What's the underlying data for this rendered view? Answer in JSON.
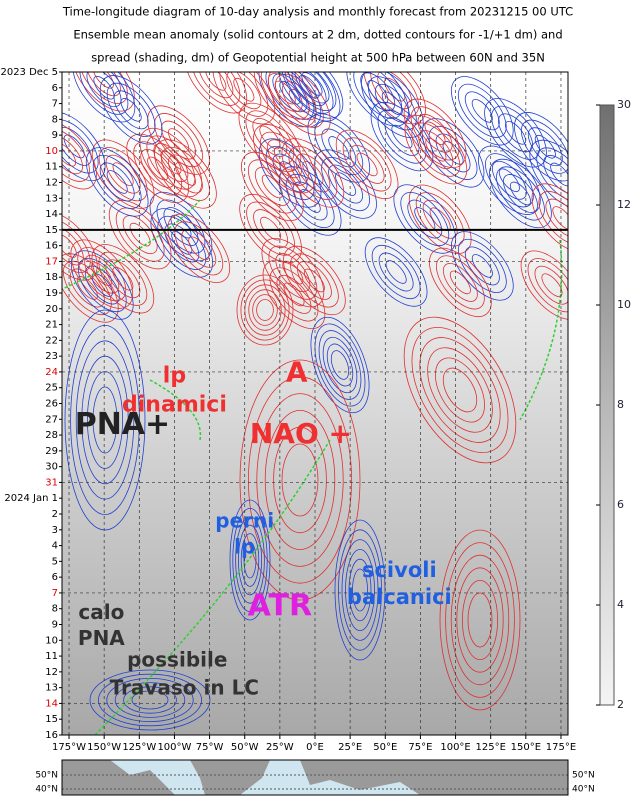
{
  "chart_data": {
    "type": "hovmoller",
    "title_lines": [
      "Time-longitude diagram of 10-day analysis and monthly forecast from 20231215 00 UTC",
      "Ensemble mean anomaly (solid contours at 2 dm, dotted contours for -1/+1 dm) and",
      "spread (shading, dm) of Geopotential height at 500 hPa between 60N and 35N"
    ],
    "dates": [
      {
        "text": "2023 Dec  5"
      },
      {
        "text": "6"
      },
      {
        "text": "7"
      },
      {
        "text": "8"
      },
      {
        "text": "9"
      },
      {
        "text": "10",
        "color": "#e00000"
      },
      {
        "text": "11"
      },
      {
        "text": "12"
      },
      {
        "text": "13"
      },
      {
        "text": "14"
      },
      {
        "text": "15"
      },
      {
        "text": "16"
      },
      {
        "text": "17",
        "color": "#e00000"
      },
      {
        "text": "18"
      },
      {
        "text": "19"
      },
      {
        "text": "20"
      },
      {
        "text": "21"
      },
      {
        "text": "22"
      },
      {
        "text": "23"
      },
      {
        "text": "24",
        "color": "#e00000"
      },
      {
        "text": "25"
      },
      {
        "text": "26"
      },
      {
        "text": "27"
      },
      {
        "text": "28"
      },
      {
        "text": "29"
      },
      {
        "text": "30"
      },
      {
        "text": "31",
        "color": "#e00000"
      },
      {
        "text": "2024  Jan  1"
      },
      {
        "text": "2"
      },
      {
        "text": "3"
      },
      {
        "text": "4"
      },
      {
        "text": "5"
      },
      {
        "text": "6"
      },
      {
        "text": "7",
        "color": "#e00000"
      },
      {
        "text": "8"
      },
      {
        "text": "9"
      },
      {
        "text": "10"
      },
      {
        "text": "11"
      },
      {
        "text": "12"
      },
      {
        "text": "13"
      },
      {
        "text": "14",
        "color": "#e00000"
      },
      {
        "text": "15"
      },
      {
        "text": "16"
      }
    ],
    "analysis_end_index": 10,
    "xlim": [
      -180,
      180
    ],
    "xticks": [
      {
        "value": -175,
        "label": "175°W"
      },
      {
        "value": -150,
        "label": "150°W"
      },
      {
        "value": -125,
        "label": "125°W"
      },
      {
        "value": -100,
        "label": "100°W"
      },
      {
        "value": -75,
        "label": "75°W"
      },
      {
        "value": -50,
        "label": "50°W"
      },
      {
        "value": -25,
        "label": "25°W"
      },
      {
        "value": 0,
        "label": "0°E"
      },
      {
        "value": 25,
        "label": "25°E"
      },
      {
        "value": 50,
        "label": "50°E"
      },
      {
        "value": 75,
        "label": "75°E"
      },
      {
        "value": 100,
        "label": "100°E"
      },
      {
        "value": 125,
        "label": "125°E"
      },
      {
        "value": 150,
        "label": "150°E"
      },
      {
        "value": 175,
        "label": "175°E"
      }
    ],
    "colorbar_ticks": [
      30,
      12,
      10,
      8,
      6,
      4,
      2
    ],
    "map_labels": [
      "50°N",
      "40°N"
    ],
    "annotations": [
      {
        "lines": [
          "lp",
          "dinamici"
        ],
        "color": "#f03030",
        "lon": -100,
        "day": 19.3,
        "size": 22
      },
      {
        "lines": [
          "A"
        ],
        "color": "#f03030",
        "lon": -13,
        "day": 19.1,
        "size": 28
      },
      {
        "lines": [
          "PNA+"
        ],
        "color": "#222222",
        "lon": -137,
        "day": 22.4,
        "size": 30
      },
      {
        "lines": [
          "NAO +"
        ],
        "color": "#f03030",
        "lon": -10,
        "day": 23.0,
        "size": 28
      },
      {
        "lines": [
          "perni",
          "lp"
        ],
        "color": "#2060e0",
        "lon": -50,
        "day": 28.5,
        "size": 20
      },
      {
        "lines": [
          "scivoli",
          "balcanici"
        ],
        "color": "#2060e0",
        "lon": 60,
        "day": 31.6,
        "size": 21
      },
      {
        "lines": [
          "ATR"
        ],
        "color": "#e020e0",
        "lon": -25,
        "day": 33.9,
        "size": 30
      },
      {
        "lines": [
          "calo",
          "PNA"
        ],
        "color": "#333333",
        "lon": -152,
        "day": 34.3,
        "size": 20
      },
      {
        "lines": [
          "possibile"
        ],
        "color": "#333333",
        "lon": -98,
        "day": 37.3,
        "size": 20
      },
      {
        "lines": [
          "Travaso in LC"
        ],
        "color": "#333333",
        "lon": -93,
        "day": 39.1,
        "size": 20
      }
    ]
  }
}
